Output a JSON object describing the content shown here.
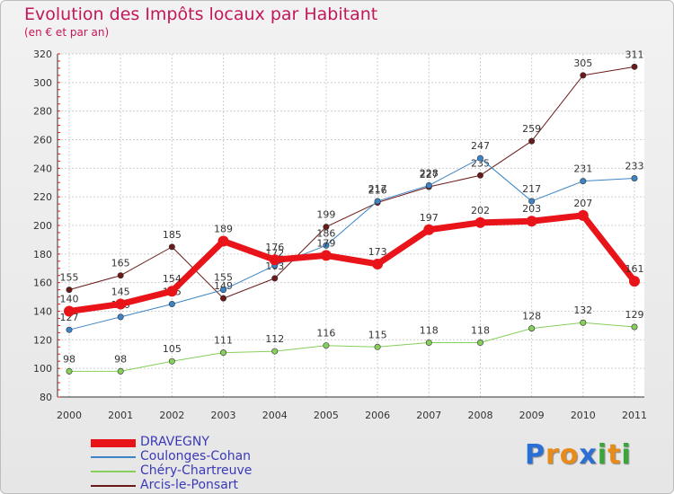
{
  "title": "Evolution des Impôts locaux par Habitant",
  "subtitle": "(en € et par an)",
  "logo": {
    "text": "Proxiti",
    "letters": [
      "P",
      "r",
      "o",
      "x",
      "i",
      "t",
      "i"
    ],
    "colors": [
      "#2a6fd6",
      "#e88b1a",
      "#e88b1a",
      "#2a6fd6",
      "#3aa63a",
      "#e88b1a",
      "#3aa63a"
    ]
  },
  "chart_data": {
    "type": "line",
    "title": "Evolution des Impôts locaux par Habitant",
    "ylabel": "(en € et par an)",
    "xlabel": "",
    "categories": [
      "2000",
      "2001",
      "2002",
      "2003",
      "2004",
      "2005",
      "2006",
      "2007",
      "2008",
      "2009",
      "2010",
      "2011"
    ],
    "ylim": [
      80,
      320
    ],
    "yticks": [
      80,
      100,
      120,
      140,
      160,
      180,
      200,
      220,
      240,
      260,
      280,
      300,
      320
    ],
    "grid": true,
    "legend_position": "bottom-left",
    "series": [
      {
        "name": "Arcis-le-Ponsart",
        "color": "#6b1a1a",
        "width": 1,
        "values": [
          155,
          165,
          185,
          149,
          163,
          199,
          216,
          227,
          235,
          259,
          305,
          311
        ]
      },
      {
        "name": "Coulonges-Cohan",
        "color": "#3d84c6",
        "width": 1,
        "values": [
          127,
          136,
          145,
          155,
          172,
          186,
          217,
          228,
          247,
          217,
          231,
          233
        ]
      },
      {
        "name": "Chéry-Chartreuve",
        "color": "#86cf5a",
        "width": 1,
        "values": [
          98,
          98,
          105,
          111,
          112,
          116,
          115,
          118,
          118,
          128,
          132,
          129
        ]
      },
      {
        "name": "DRAVEGNY",
        "color": "#e8141a",
        "width": 7,
        "values": [
          140,
          145,
          154,
          189,
          176,
          179,
          173,
          197,
          202,
          203,
          207,
          161
        ]
      }
    ],
    "legend_order": [
      "DRAVEGNY",
      "Coulonges-Cohan",
      "Chéry-Chartreuve",
      "Arcis-le-Ponsart"
    ]
  }
}
